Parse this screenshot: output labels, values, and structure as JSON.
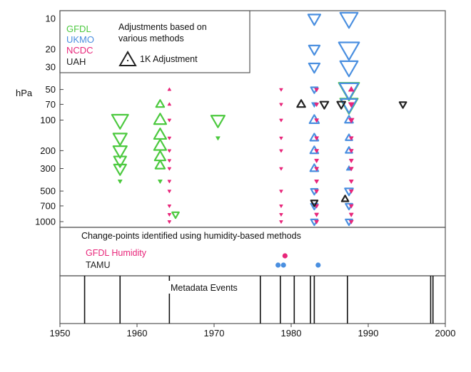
{
  "chart_data": {
    "type": "scatter",
    "title": "",
    "xlabel": "",
    "ylabel": "hPa",
    "xlim": [
      1950,
      2000
    ],
    "x_ticks": [
      1950,
      1960,
      1970,
      1980,
      1990,
      2000
    ],
    "y_ticks": [
      10,
      20,
      30,
      50,
      70,
      100,
      200,
      300,
      500,
      700,
      1000
    ],
    "ylim": [
      10,
      1000
    ],
    "y_scale": "log",
    "y_inverted": true,
    "legend": {
      "placement": "top-left",
      "entries": [
        {
          "name": "GFDL",
          "color": "#4cc93f"
        },
        {
          "name": "UKMO",
          "color": "#4a8fe0"
        },
        {
          "name": "NCDC",
          "color": "#e8267a"
        },
        {
          "name": "UAH",
          "color": "#222222"
        }
      ],
      "note_title": "Adjustments based on various methods",
      "note_title_lines": [
        "Adjustments based on",
        "various methods"
      ],
      "scale_label": "1K Adjustment"
    },
    "humidity_panel": {
      "title": "Change-points identified using humidity-based methods",
      "series": [
        {
          "name": "GFDL Humidity",
          "color": "#e8267a",
          "x": [
            1979.2
          ]
        },
        {
          "name": "TAMU",
          "color": "#4a8fe0",
          "x": [
            1978.3,
            1979.0,
            1983.5
          ]
        }
      ]
    },
    "metadata_panel": {
      "title": "Metadata Events",
      "x": [
        1953.2,
        1957.8,
        1964.2,
        1976.0,
        1978.6,
        1980.4,
        1982.5,
        1983.0,
        1987.3,
        1998.1,
        1998.4
      ]
    },
    "series": [
      {
        "name": "GFDL",
        "color": "#4cc93f",
        "points": [
          {
            "x": 1957.8,
            "p": 100,
            "dir": "down",
            "mag": 1.2
          },
          {
            "x": 1957.8,
            "p": 150,
            "dir": "down",
            "mag": 1.0
          },
          {
            "x": 1957.8,
            "p": 200,
            "dir": "down",
            "mag": 1.0
          },
          {
            "x": 1957.8,
            "p": 250,
            "dir": "down",
            "mag": 0.9
          },
          {
            "x": 1957.8,
            "p": 300,
            "dir": "down",
            "mag": 0.9
          },
          {
            "x": 1957.8,
            "p": 400,
            "dir": "down",
            "mag": 0.3
          },
          {
            "x": 1963.0,
            "p": 70,
            "dir": "up",
            "mag": 0.6
          },
          {
            "x": 1963.0,
            "p": 100,
            "dir": "up",
            "mag": 0.9
          },
          {
            "x": 1963.0,
            "p": 140,
            "dir": "up",
            "mag": 0.9
          },
          {
            "x": 1963.0,
            "p": 180,
            "dir": "up",
            "mag": 0.9
          },
          {
            "x": 1963.0,
            "p": 230,
            "dir": "up",
            "mag": 0.8
          },
          {
            "x": 1963.0,
            "p": 280,
            "dir": "up",
            "mag": 0.7
          },
          {
            "x": 1963.0,
            "p": 400,
            "dir": "down",
            "mag": 0.3
          },
          {
            "x": 1965.0,
            "p": 850,
            "dir": "down",
            "mag": 0.5
          },
          {
            "x": 1970.5,
            "p": 100,
            "dir": "down",
            "mag": 1.0
          },
          {
            "x": 1970.5,
            "p": 150,
            "dir": "down",
            "mag": 0.3
          },
          {
            "x": 1987.5,
            "p": 50,
            "dir": "down",
            "mag": 1.5
          },
          {
            "x": 1987.5,
            "p": 70,
            "dir": "down",
            "mag": 1.3
          }
        ]
      },
      {
        "name": "UKMO",
        "color": "#4a8fe0",
        "points": [
          {
            "x": 1983.0,
            "p": 10,
            "dir": "down",
            "mag": 0.9
          },
          {
            "x": 1983.0,
            "p": 20,
            "dir": "down",
            "mag": 0.8
          },
          {
            "x": 1983.0,
            "p": 30,
            "dir": "down",
            "mag": 0.8
          },
          {
            "x": 1983.0,
            "p": 50,
            "dir": "down",
            "mag": 0.5
          },
          {
            "x": 1983.0,
            "p": 70,
            "dir": "down",
            "mag": 0.4
          },
          {
            "x": 1983.0,
            "p": 100,
            "dir": "up",
            "mag": 0.7
          },
          {
            "x": 1983.0,
            "p": 150,
            "dir": "up",
            "mag": 0.6
          },
          {
            "x": 1983.0,
            "p": 200,
            "dir": "up",
            "mag": 0.6
          },
          {
            "x": 1983.0,
            "p": 300,
            "dir": "up",
            "mag": 0.6
          },
          {
            "x": 1983.0,
            "p": 500,
            "dir": "down",
            "mag": 0.5
          },
          {
            "x": 1983.0,
            "p": 700,
            "dir": "down",
            "mag": 0.5
          },
          {
            "x": 1983.0,
            "p": 1000,
            "dir": "down",
            "mag": 0.5
          },
          {
            "x": 1987.5,
            "p": 10,
            "dir": "down",
            "mag": 1.3
          },
          {
            "x": 1987.5,
            "p": 20,
            "dir": "down",
            "mag": 1.5
          },
          {
            "x": 1987.5,
            "p": 30,
            "dir": "down",
            "mag": 1.3
          },
          {
            "x": 1987.5,
            "p": 50,
            "dir": "down",
            "mag": 1.4
          },
          {
            "x": 1987.5,
            "p": 70,
            "dir": "down",
            "mag": 1.2
          },
          {
            "x": 1987.5,
            "p": 100,
            "dir": "up",
            "mag": 0.6
          },
          {
            "x": 1987.5,
            "p": 150,
            "dir": "up",
            "mag": 0.5
          },
          {
            "x": 1987.5,
            "p": 200,
            "dir": "up",
            "mag": 0.5
          },
          {
            "x": 1987.5,
            "p": 300,
            "dir": "up",
            "mag": 0.4
          },
          {
            "x": 1987.5,
            "p": 500,
            "dir": "down",
            "mag": 0.6
          },
          {
            "x": 1987.5,
            "p": 700,
            "dir": "down",
            "mag": 0.5
          },
          {
            "x": 1987.5,
            "p": 1000,
            "dir": "down",
            "mag": 0.5
          }
        ]
      },
      {
        "name": "NCDC",
        "color": "#e8267a",
        "points": [
          {
            "x": 1964.2,
            "p": 50,
            "dir": "up",
            "mag": 0.2
          },
          {
            "x": 1964.2,
            "p": 70,
            "dir": "up",
            "mag": 0.15
          },
          {
            "x": 1964.2,
            "p": 100,
            "dir": "down",
            "mag": 0.1
          },
          {
            "x": 1964.2,
            "p": 150,
            "dir": "down",
            "mag": 0.1
          },
          {
            "x": 1964.2,
            "p": 200,
            "dir": "down",
            "mag": 0.1
          },
          {
            "x": 1964.2,
            "p": 250,
            "dir": "down",
            "mag": 0.1
          },
          {
            "x": 1964.2,
            "p": 300,
            "dir": "down",
            "mag": 0.1
          },
          {
            "x": 1964.2,
            "p": 400,
            "dir": "down",
            "mag": 0.1
          },
          {
            "x": 1964.2,
            "p": 500,
            "dir": "down",
            "mag": 0.1
          },
          {
            "x": 1964.2,
            "p": 700,
            "dir": "down",
            "mag": 0.1
          },
          {
            "x": 1964.2,
            "p": 850,
            "dir": "down",
            "mag": 0.1
          },
          {
            "x": 1964.2,
            "p": 1000,
            "dir": "down",
            "mag": 0.2
          },
          {
            "x": 1978.7,
            "p": 50,
            "dir": "down",
            "mag": 0.2
          },
          {
            "x": 1978.7,
            "p": 70,
            "dir": "down",
            "mag": 0.1
          },
          {
            "x": 1978.7,
            "p": 100,
            "dir": "down",
            "mag": 0.1
          },
          {
            "x": 1978.7,
            "p": 150,
            "dir": "down",
            "mag": 0.1
          },
          {
            "x": 1978.7,
            "p": 200,
            "dir": "down",
            "mag": 0.1
          },
          {
            "x": 1978.7,
            "p": 300,
            "dir": "down",
            "mag": 0.1
          },
          {
            "x": 1978.7,
            "p": 500,
            "dir": "down",
            "mag": 0.1
          },
          {
            "x": 1978.7,
            "p": 700,
            "dir": "down",
            "mag": 0.1
          },
          {
            "x": 1978.7,
            "p": 850,
            "dir": "down",
            "mag": 0.1
          },
          {
            "x": 1978.7,
            "p": 1000,
            "dir": "down",
            "mag": 0.1
          },
          {
            "x": 1983.3,
            "p": 50,
            "dir": "down",
            "mag": 0.3
          },
          {
            "x": 1983.3,
            "p": 70,
            "dir": "down",
            "mag": 0.3
          },
          {
            "x": 1983.3,
            "p": 100,
            "dir": "down",
            "mag": 0.3
          },
          {
            "x": 1983.3,
            "p": 150,
            "dir": "down",
            "mag": 0.3
          },
          {
            "x": 1983.3,
            "p": 200,
            "dir": "down",
            "mag": 0.3
          },
          {
            "x": 1983.3,
            "p": 250,
            "dir": "down",
            "mag": 0.3
          },
          {
            "x": 1983.3,
            "p": 300,
            "dir": "down",
            "mag": 0.3
          },
          {
            "x": 1983.3,
            "p": 400,
            "dir": "down",
            "mag": 0.3
          },
          {
            "x": 1983.3,
            "p": 500,
            "dir": "down",
            "mag": 0.3
          },
          {
            "x": 1983.3,
            "p": 700,
            "dir": "down",
            "mag": 0.3
          },
          {
            "x": 1983.3,
            "p": 850,
            "dir": "down",
            "mag": 0.3
          },
          {
            "x": 1983.3,
            "p": 1000,
            "dir": "down",
            "mag": 0.3
          },
          {
            "x": 1987.8,
            "p": 50,
            "dir": "up",
            "mag": 0.4
          },
          {
            "x": 1987.8,
            "p": 70,
            "dir": "down",
            "mag": 0.4
          },
          {
            "x": 1987.8,
            "p": 100,
            "dir": "down",
            "mag": 0.4
          },
          {
            "x": 1987.8,
            "p": 150,
            "dir": "down",
            "mag": 0.3
          },
          {
            "x": 1987.8,
            "p": 200,
            "dir": "down",
            "mag": 0.3
          },
          {
            "x": 1987.8,
            "p": 250,
            "dir": "down",
            "mag": 0.3
          },
          {
            "x": 1987.8,
            "p": 300,
            "dir": "down",
            "mag": 0.3
          },
          {
            "x": 1987.8,
            "p": 400,
            "dir": "down",
            "mag": 0.3
          },
          {
            "x": 1987.8,
            "p": 500,
            "dir": "down",
            "mag": 0.3
          },
          {
            "x": 1987.8,
            "p": 700,
            "dir": "down",
            "mag": 0.3
          },
          {
            "x": 1987.8,
            "p": 850,
            "dir": "down",
            "mag": 0.3
          },
          {
            "x": 1987.8,
            "p": 1000,
            "dir": "down",
            "mag": 0.3
          }
        ]
      },
      {
        "name": "UAH",
        "color": "#222222",
        "points": [
          {
            "x": 1981.3,
            "p": 70,
            "dir": "up",
            "mag": 0.6
          },
          {
            "x": 1984.3,
            "p": 70,
            "dir": "down",
            "mag": 0.6
          },
          {
            "x": 1986.5,
            "p": 70,
            "dir": "down",
            "mag": 0.6
          },
          {
            "x": 1994.5,
            "p": 70,
            "dir": "down",
            "mag": 0.5
          },
          {
            "x": 1983.0,
            "p": 650,
            "dir": "down",
            "mag": 0.5
          },
          {
            "x": 1987.0,
            "p": 600,
            "dir": "up",
            "mag": 0.5
          }
        ]
      }
    ]
  }
}
